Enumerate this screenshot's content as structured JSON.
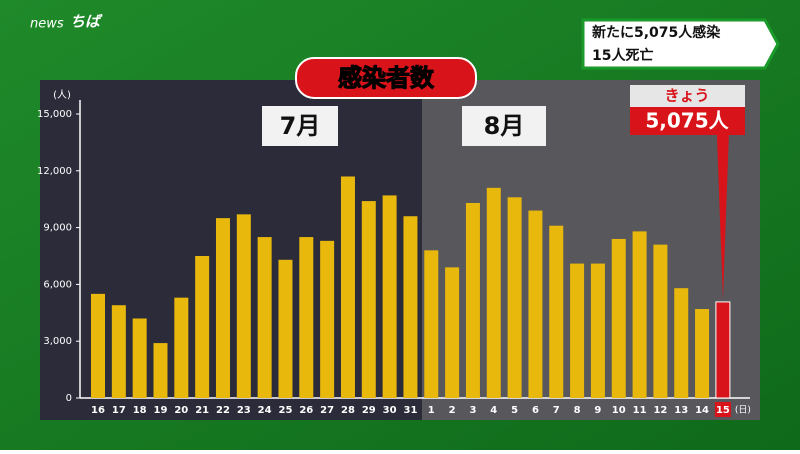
{
  "logo": {
    "prefix": "news",
    "name": "ちば"
  },
  "headline": {
    "line1": "新たに5,075人感染",
    "line2": "15人死亡"
  },
  "chart_data": {
    "type": "bar",
    "title": "感染者数",
    "y_unit": "(人)",
    "x_unit": "(日)",
    "months": [
      "7月",
      "8月"
    ],
    "categories": [
      "16",
      "17",
      "18",
      "19",
      "20",
      "21",
      "22",
      "23",
      "24",
      "25",
      "26",
      "27",
      "28",
      "29",
      "30",
      "31",
      "1",
      "2",
      "3",
      "4",
      "5",
      "6",
      "7",
      "8",
      "9",
      "10",
      "11",
      "12",
      "13",
      "14",
      "15"
    ],
    "values": [
      5500,
      4900,
      4200,
      2900,
      5300,
      7500,
      9500,
      9700,
      8500,
      7300,
      8500,
      8300,
      11700,
      10400,
      10700,
      9600,
      7800,
      6900,
      10300,
      11100,
      10600,
      9900,
      9100,
      7100,
      7100,
      8400,
      8800,
      8100,
      5800,
      4700,
      5075
    ],
    "value_labels": [
      null,
      null,
      null,
      null,
      null,
      null,
      null,
      null,
      null,
      null,
      null,
      null,
      null,
      null,
      null,
      null,
      null,
      null,
      null,
      null,
      null,
      null,
      null,
      null,
      null,
      null,
      null,
      null,
      null,
      null,
      "5,075人"
    ],
    "today_label": "きょう",
    "colors": [
      "#e9b80c",
      "#e9b80c",
      "#e9b80c",
      "#e9b80c",
      "#e9b80c",
      "#e9b80c",
      "#e9b80c",
      "#e9b80c",
      "#e9b80c",
      "#e9b80c",
      "#e9b80c",
      "#e9b80c",
      "#e9b80c",
      "#e9b80c",
      "#e9b80c",
      "#e9b80c",
      "#e9b80c",
      "#e9b80c",
      "#e9b80c",
      "#e9b80c",
      "#e9b80c",
      "#e9b80c",
      "#e9b80c",
      "#e9b80c",
      "#e9b80c",
      "#e9b80c",
      "#e9b80c",
      "#e9b80c",
      "#e9b80c",
      "#e9b80c",
      "#d8141a"
    ],
    "ylim": [
      0,
      15000
    ],
    "yticks": [
      0,
      {
        "value": 3000,
        "label": "3,000"
      },
      {
        "value": 6000,
        "label": "6,000"
      },
      {
        "value": 9000,
        "label": "9,000"
      },
      {
        "value": 12000,
        "label": "12,000"
      },
      {
        "value": 15000,
        "label": "15,000"
      }
    ]
  }
}
